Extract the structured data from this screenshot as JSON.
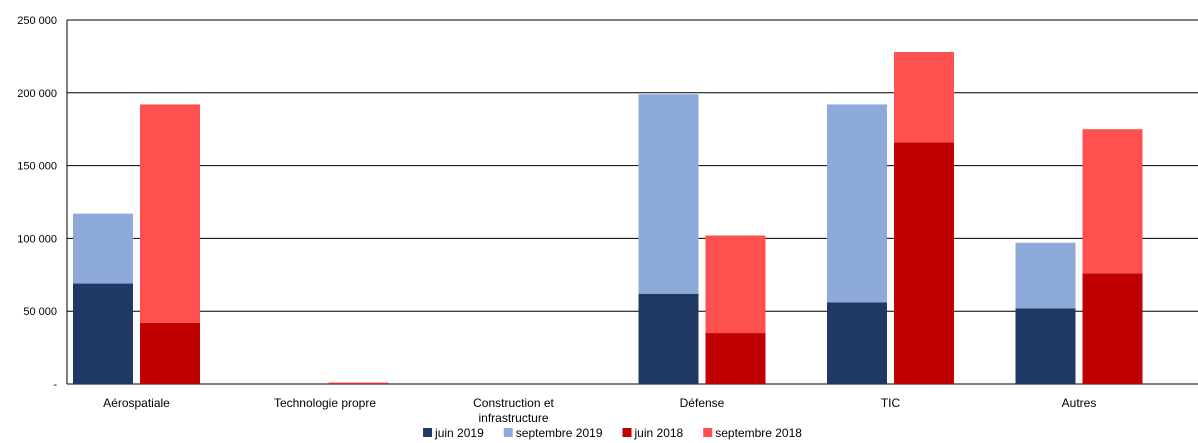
{
  "chart_data": {
    "type": "bar",
    "stacked": true,
    "categories": [
      "Aérospatiale",
      "Technologie propre",
      "Construction et infrastructure",
      "Défense",
      "TIC",
      "Autres"
    ],
    "category_lines": [
      [
        "Aérospatiale"
      ],
      [
        "Technologie propre"
      ],
      [
        "Construction et",
        "infrastructure"
      ],
      [
        "Défense"
      ],
      [
        "TIC"
      ],
      [
        "Autres"
      ]
    ],
    "ylim": [
      0,
      250000
    ],
    "yticks": [
      0,
      50000,
      100000,
      150000,
      200000,
      250000
    ],
    "ytick_labels": [
      "-",
      "50 000",
      "100 000",
      "150 000",
      "200 000",
      "250 000"
    ],
    "grid": "horizontal",
    "legend_position": "bottom",
    "series": [
      {
        "name": "juin 2019",
        "stack": "2019",
        "color": "#1f3864",
        "values": [
          69000,
          0,
          0,
          62000,
          56000,
          52000
        ]
      },
      {
        "name": "septembre 2019",
        "stack": "2019",
        "color": "#8eaadb",
        "values": [
          48000,
          0,
          0,
          137000,
          136000,
          45000
        ]
      },
      {
        "name": "juin 2018",
        "stack": "2018",
        "color": "#c00000",
        "values": [
          42000,
          300,
          0,
          35000,
          166000,
          76000
        ]
      },
      {
        "name": "septembre 2018",
        "stack": "2018",
        "color": "#ff5050",
        "values": [
          150000,
          700,
          0,
          67000,
          62000,
          99000
        ]
      }
    ]
  }
}
